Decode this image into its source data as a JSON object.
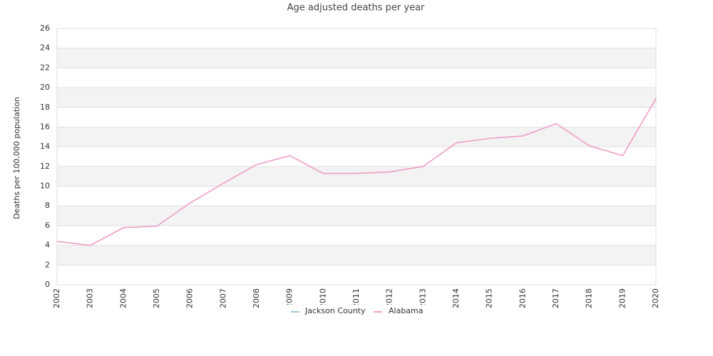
{
  "chart_data": {
    "type": "line",
    "title": "Age adjusted deaths per year",
    "y_label": "Deaths per 100,000 population",
    "categories": [
      "2002",
      "2003",
      "2004",
      "2005",
      "2006",
      "2007",
      "2008",
      "2009",
      "2010",
      "2011",
      "2012",
      "2013",
      "2014",
      "2015",
      "2016",
      "2017",
      "2018",
      "2019",
      "2020"
    ],
    "series": [
      {
        "name": "Jackson County",
        "color": "#9ecae1",
        "values": [
          null,
          null,
          null,
          null,
          null,
          null,
          null,
          null,
          null,
          null,
          null,
          null,
          null,
          null,
          null,
          null,
          null,
          null,
          null
        ]
      },
      {
        "name": "Alabama",
        "color": "#f09cc8",
        "values": [
          4.4,
          4.0,
          5.8,
          5.95,
          8.3,
          10.3,
          12.2,
          13.1,
          11.3,
          11.3,
          11.45,
          12.0,
          14.4,
          14.85,
          15.1,
          16.35,
          14.1,
          13.1,
          18.9
        ]
      }
    ],
    "ylim": [
      0,
      26
    ],
    "yticks": [
      0,
      2,
      4,
      6,
      8,
      10,
      12,
      14,
      16,
      18,
      20,
      22,
      24,
      26
    ],
    "grid": true,
    "legend": "bottom"
  }
}
